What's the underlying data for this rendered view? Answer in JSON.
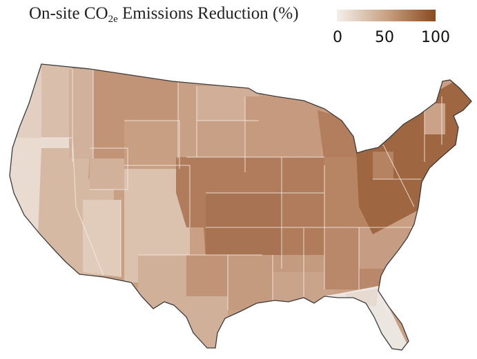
{
  "title": {
    "prefix": "On-site CO",
    "subscript": "2e",
    "suffix": " Emissions Reduction (%)"
  },
  "legend": {
    "ticks": [
      "0",
      "50",
      "100"
    ],
    "colors": {
      "low": "#f4efeb",
      "mid": "#c9a284",
      "high": "#8a4a1e"
    }
  },
  "map": {
    "background_color": "#ffffff",
    "border_color": "#3a3a3a"
  }
}
